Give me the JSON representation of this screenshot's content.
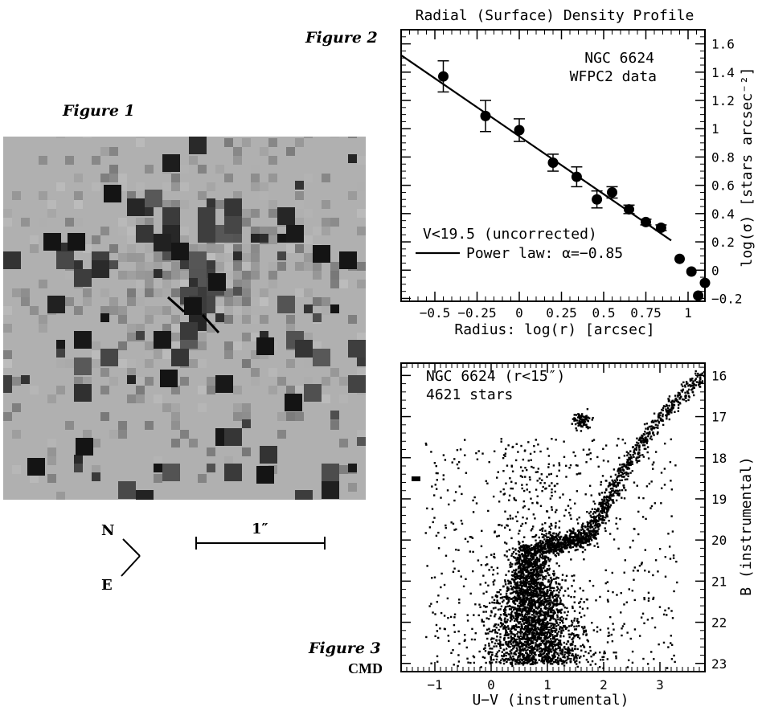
{
  "figure1": {
    "label": "Figure 1",
    "compass": {
      "north": "N",
      "east": "E"
    },
    "scale_bar": "1″"
  },
  "figure2": {
    "label": "Figure 2"
  },
  "figure3": {
    "label": "Figure 3",
    "sublabel": "CMD"
  },
  "chart_data": [
    {
      "type": "scatter",
      "title": "Radial (Surface) Density Profile",
      "xlabel": "Radius: log(r) [arcsec]",
      "ylabel": "log(σ) [stars arcsec⁻²]",
      "xlim": [
        -0.7,
        1.1
      ],
      "ylim": [
        -0.22,
        1.7
      ],
      "xticks": [
        "−0.5",
        "−0.25",
        "0",
        "0.25",
        "0.5",
        "0.75",
        "1"
      ],
      "yticks": [
        "−0.2",
        "0",
        "0.2",
        "0.4",
        "0.6",
        "0.8",
        "1",
        "1.2",
        "1.4",
        "1.6"
      ],
      "annotations": [
        "NGC 6624",
        "WFPC2 data"
      ],
      "legend": {
        "condition": "V<19.5 (uncorrected)",
        "line_label": "Power law: α=−0.85"
      },
      "points": [
        {
          "x": -0.45,
          "y": 1.37,
          "err": 0.11
        },
        {
          "x": -0.2,
          "y": 1.09,
          "err": 0.11
        },
        {
          "x": 0.0,
          "y": 0.99,
          "err": 0.08
        },
        {
          "x": 0.2,
          "y": 0.76,
          "err": 0.06
        },
        {
          "x": 0.34,
          "y": 0.66,
          "err": 0.07
        },
        {
          "x": 0.46,
          "y": 0.5,
          "err": 0.06
        },
        {
          "x": 0.55,
          "y": 0.55,
          "err": 0.04
        },
        {
          "x": 0.65,
          "y": 0.43,
          "err": 0.03
        },
        {
          "x": 0.75,
          "y": 0.34,
          "err": 0.02
        },
        {
          "x": 0.84,
          "y": 0.3,
          "err": 0.02
        },
        {
          "x": 0.95,
          "y": 0.08,
          "err": 0.0
        },
        {
          "x": 1.02,
          "y": -0.01,
          "err": 0.0
        },
        {
          "x": 1.06,
          "y": -0.18,
          "err": 0.0
        },
        {
          "x": 1.1,
          "y": -0.09,
          "err": 0.0
        }
      ],
      "fit_line": {
        "x": [
          -0.7,
          0.9
        ],
        "y": [
          1.52,
          0.21
        ]
      }
    },
    {
      "type": "scatter",
      "xlabel": "U−V (instrumental)",
      "ylabel": "B (instrumental)",
      "xlim": [
        -1.6,
        3.8
      ],
      "ylim": [
        23.2,
        15.7
      ],
      "xticks": [
        "−1",
        "0",
        "1",
        "2",
        "3"
      ],
      "yticks": [
        "16",
        "17",
        "18",
        "19",
        "20",
        "21",
        "22",
        "23"
      ],
      "annotations": [
        "NGC 6624 (r<15″)",
        "4621 stars"
      ],
      "star_count": 4621
    }
  ]
}
